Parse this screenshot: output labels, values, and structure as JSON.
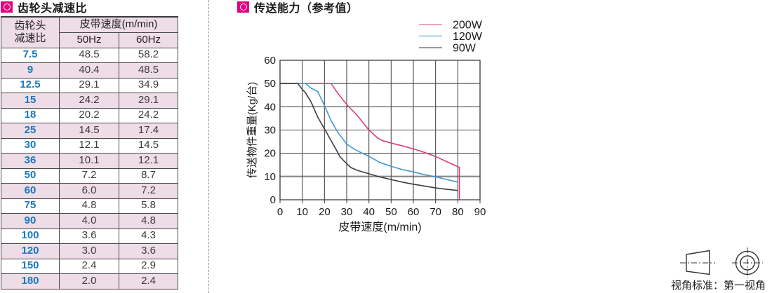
{
  "table_section": {
    "title": "齿轮头减速比",
    "table": {
      "col1_header_line1": "齿轮头",
      "col1_header_line2": "减速比",
      "col2_header": "皮带速度(m/min)",
      "sub_headers": [
        "50Hz",
        "60Hz"
      ],
      "rows": [
        {
          "ratio": "7.5",
          "hz50": "48.5",
          "hz60": "58.2"
        },
        {
          "ratio": "9",
          "hz50": "40.4",
          "hz60": "48.5"
        },
        {
          "ratio": "12.5",
          "hz50": "29.1",
          "hz60": "34.9"
        },
        {
          "ratio": "15",
          "hz50": "24.2",
          "hz60": "29.1"
        },
        {
          "ratio": "18",
          "hz50": "20.2",
          "hz60": "24.2"
        },
        {
          "ratio": "25",
          "hz50": "14.5",
          "hz60": "17.4"
        },
        {
          "ratio": "30",
          "hz50": "12.1",
          "hz60": "14.5"
        },
        {
          "ratio": "36",
          "hz50": "10.1",
          "hz60": "12.1"
        },
        {
          "ratio": "50",
          "hz50": "7.2",
          "hz60": "8.7"
        },
        {
          "ratio": "60",
          "hz50": "6.0",
          "hz60": "7.2"
        },
        {
          "ratio": "75",
          "hz50": "4.8",
          "hz60": "5.8"
        },
        {
          "ratio": "90",
          "hz50": "4.0",
          "hz60": "4.8"
        },
        {
          "ratio": "100",
          "hz50": "3.6",
          "hz60": "4.3"
        },
        {
          "ratio": "120",
          "hz50": "3.0",
          "hz60": "3.6"
        },
        {
          "ratio": "150",
          "hz50": "2.4",
          "hz60": "2.9"
        },
        {
          "ratio": "180",
          "hz50": "2.0",
          "hz60": "2.4"
        }
      ]
    },
    "accent_color": "#e4007f",
    "row_stripe_color": "#eedce6"
  },
  "chart_section": {
    "title": "传送能力（参考值）"
  },
  "chart_data": {
    "type": "line",
    "title": "传送能力（参考值）",
    "xlabel": "皮带速度(m/min)",
    "ylabel": "传送物件重量(Kg/台)",
    "xlim": [
      0,
      90
    ],
    "ylim": [
      0,
      60
    ],
    "xticks": [
      0,
      10,
      20,
      30,
      40,
      50,
      60,
      70,
      80,
      90
    ],
    "yticks": [
      0,
      10,
      20,
      30,
      40,
      50,
      60
    ],
    "grid": true,
    "legend_position": "top-right",
    "series": [
      {
        "name": "200W",
        "color": "#dc3c7c",
        "legend_color": "#efa3c4",
        "points": [
          [
            0,
            50
          ],
          [
            23,
            50
          ],
          [
            26,
            45.8
          ],
          [
            30,
            41
          ],
          [
            35,
            36
          ],
          [
            40,
            30
          ],
          [
            44,
            26.5
          ],
          [
            46,
            25.5
          ],
          [
            50,
            24.4
          ],
          [
            55,
            23.2
          ],
          [
            60,
            21.9
          ],
          [
            65,
            20.4
          ],
          [
            70,
            18.6
          ],
          [
            75,
            16.4
          ],
          [
            80,
            14.2
          ],
          [
            80.7,
            14
          ],
          [
            80.7,
            0
          ]
        ]
      },
      {
        "name": "120W",
        "color": "#4198d2",
        "legend_color": "#a6d0e8",
        "points": [
          [
            0,
            50
          ],
          [
            11.5,
            50
          ],
          [
            14,
            48
          ],
          [
            17,
            46.5
          ],
          [
            20,
            40.5
          ],
          [
            23,
            34
          ],
          [
            26,
            29
          ],
          [
            30,
            24
          ],
          [
            33,
            22
          ],
          [
            36,
            20.5
          ],
          [
            40,
            18.7
          ],
          [
            45,
            16
          ],
          [
            50,
            14.4
          ],
          [
            55,
            13
          ],
          [
            60,
            12
          ],
          [
            65,
            10.8
          ],
          [
            70,
            9.9
          ],
          [
            75,
            8.7
          ],
          [
            80,
            7.6
          ]
        ]
      },
      {
        "name": "90W",
        "color": "#3c3c3c",
        "legend_color": "#9b9b9b",
        "points": [
          [
            0,
            50
          ],
          [
            8,
            50
          ],
          [
            10,
            47.5
          ],
          [
            11.5,
            46
          ],
          [
            14,
            42
          ],
          [
            17,
            35.5
          ],
          [
            20,
            30.5
          ],
          [
            25,
            22
          ],
          [
            27,
            18.5
          ],
          [
            30,
            15.5
          ],
          [
            32,
            13.8
          ],
          [
            35,
            12.6
          ],
          [
            40,
            11.2
          ],
          [
            45,
            9.8
          ],
          [
            50,
            8.7
          ],
          [
            55,
            7.6
          ],
          [
            60,
            6.7
          ],
          [
            65,
            5.9
          ],
          [
            70,
            5.1
          ],
          [
            75,
            4.5
          ],
          [
            80,
            4
          ]
        ]
      }
    ]
  },
  "footer": {
    "projection_label": "视角标准：第一视角"
  }
}
